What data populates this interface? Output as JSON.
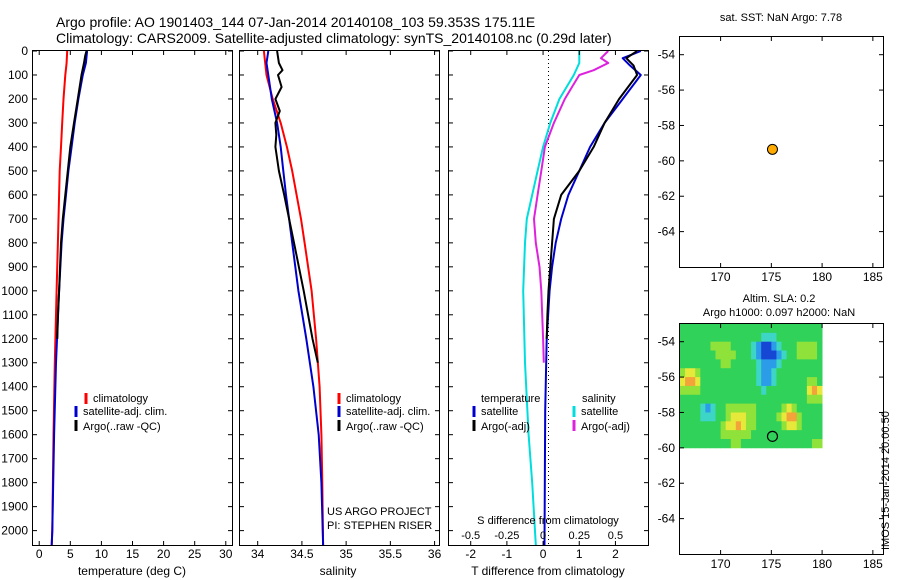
{
  "header": {
    "title_line1": "Argo profile: AO 1901403_144 07-Jan-2014 20140108_103 59.353S 175.11E",
    "title_line2": "Climatology: CARS2009. Satellite-adjusted climatology: synTS_20140108.nc (0.29d later)"
  },
  "depth_axis": {
    "ticks": [
      0,
      100,
      200,
      300,
      400,
      500,
      600,
      700,
      800,
      900,
      1000,
      1100,
      1200,
      1300,
      1400,
      1500,
      1600,
      1700,
      1800,
      1900,
      2000
    ],
    "ylim": [
      0,
      2060
    ]
  },
  "colors": {
    "climatology": "#ff0000",
    "satellite": "#0000cc",
    "argo": "#000000",
    "satellite_salinity": "#00dddd",
    "argo_salinity": "#dd22dd",
    "marker": "#ffaa00"
  },
  "chart_data": [
    {
      "type": "line",
      "id": "temperature",
      "xlabel": "temperature (deg C)",
      "xlim": [
        -1,
        31
      ],
      "xticks": [
        0,
        5,
        10,
        15,
        20,
        25,
        30
      ],
      "ylim": [
        0,
        2060
      ],
      "legend": {
        "climatology": "climatology",
        "satellite": "satellite-adj. clim.",
        "argo": "Argo(..raw -QC)"
      },
      "series": [
        {
          "key": "climatology",
          "depth": [
            0,
            50,
            100,
            200,
            300,
            400,
            500,
            600,
            800,
            1000,
            1300,
            1600,
            2000,
            2060
          ],
          "values": [
            4.5,
            4.4,
            4.2,
            3.9,
            3.7,
            3.5,
            3.3,
            3.2,
            3.0,
            2.8,
            2.5,
            2.3,
            2.1,
            2.0
          ]
        },
        {
          "key": "satellite",
          "depth": [
            0,
            50,
            100,
            200,
            300,
            400,
            500,
            600,
            700,
            800,
            1000,
            1300,
            1600,
            2000,
            2060
          ],
          "values": [
            7.7,
            7.5,
            7.0,
            6.3,
            5.7,
            5.2,
            4.7,
            4.3,
            3.9,
            3.6,
            3.2,
            2.7,
            2.4,
            2.1,
            2.0
          ]
        },
        {
          "key": "argo",
          "depth": [
            0,
            20,
            50,
            100,
            200,
            300,
            400,
            500,
            600,
            700,
            800,
            1000,
            1100,
            1200
          ],
          "values": [
            7.6,
            7.4,
            7.2,
            6.8,
            6.2,
            5.6,
            5.0,
            4.6,
            4.2,
            3.8,
            3.5,
            3.2,
            3.0,
            2.9
          ]
        }
      ]
    },
    {
      "type": "line",
      "id": "salinity",
      "xlabel": "salinity",
      "xlim": [
        33.8,
        36.05
      ],
      "xticks": [
        34,
        34.5,
        35,
        35.5,
        36
      ],
      "ylim": [
        0,
        2060
      ],
      "legend": {
        "climatology": "climatology",
        "satellite": "satellite-adj. clim.",
        "argo": "Argo(..raw -QC)"
      },
      "annotations": [
        "US ARGO PROJECT",
        "PI: STEPHEN RISER"
      ],
      "series": [
        {
          "key": "climatology",
          "depth": [
            0,
            100,
            200,
            300,
            400,
            500,
            600,
            700,
            800,
            900,
            1000,
            1200,
            1400,
            1600,
            1800,
            2060
          ],
          "values": [
            34.07,
            34.1,
            34.17,
            34.26,
            34.33,
            34.39,
            34.44,
            34.49,
            34.53,
            34.57,
            34.61,
            34.66,
            34.7,
            34.72,
            34.73,
            34.74
          ]
        },
        {
          "key": "satellite",
          "depth": [
            0,
            50,
            100,
            200,
            300,
            400,
            500,
            600,
            800,
            1000,
            1200,
            1400,
            1600,
            1800,
            2060
          ],
          "values": [
            34.12,
            34.1,
            34.12,
            34.16,
            34.22,
            34.26,
            34.29,
            34.32,
            34.39,
            34.46,
            34.55,
            34.63,
            34.69,
            34.72,
            34.74
          ]
        },
        {
          "key": "argo",
          "depth": [
            0,
            50,
            80,
            100,
            150,
            200,
            250,
            300,
            350,
            400,
            500,
            600,
            800,
            1000,
            1200,
            1300
          ],
          "values": [
            34.22,
            34.24,
            34.28,
            34.23,
            34.27,
            34.2,
            34.25,
            34.2,
            34.21,
            34.2,
            34.24,
            34.3,
            34.41,
            34.52,
            34.62,
            34.68
          ]
        }
      ]
    },
    {
      "type": "line",
      "id": "difference",
      "xlabel": "T difference from climatology",
      "x2label": "S difference from climatology",
      "xlim": [
        -2.6,
        2.9
      ],
      "xticks": [
        -2,
        -1,
        0,
        1,
        2
      ],
      "x2ticks_labels": [
        "-0.5",
        "-0.25",
        "0",
        "0.25",
        "0.5"
      ],
      "x2ticks_t": [
        -2,
        -1,
        0,
        1,
        2
      ],
      "ylim": [
        0,
        2060
      ],
      "legend": {
        "temperature_heading": "temperature",
        "salinity_heading": "salinity",
        "satellite": "satellite",
        "argo": "Argo(-adj)"
      },
      "series": [
        {
          "key": "t_satellite",
          "depth": [
            0,
            30,
            60,
            100,
            200,
            300,
            400,
            500,
            600,
            700,
            800,
            900,
            1000,
            1200,
            1500,
            2060
          ],
          "values": [
            2.7,
            2.2,
            2.4,
            2.7,
            2.2,
            1.7,
            1.3,
            1.0,
            0.7,
            0.5,
            0.35,
            0.25,
            0.18,
            0.1,
            0.06,
            0.04
          ]
        },
        {
          "key": "t_argo",
          "depth": [
            0,
            30,
            60,
            100,
            200,
            300,
            400,
            500,
            600,
            700,
            800,
            900,
            1000,
            1100,
            1200
          ],
          "values": [
            2.6,
            2.3,
            2.5,
            2.6,
            2.1,
            1.7,
            1.4,
            1.0,
            0.5,
            0.3,
            0.25,
            0.2,
            0.15,
            0.12,
            0.1
          ]
        },
        {
          "key": "s_satellite",
          "depth": [
            0,
            50,
            100,
            200,
            300,
            400,
            500,
            600,
            700,
            800,
            1000,
            1300,
            1600,
            1800,
            2060
          ],
          "values": [
            1.0,
            1.0,
            0.85,
            0.45,
            0.2,
            0.0,
            -0.15,
            -0.3,
            -0.45,
            -0.5,
            -0.55,
            -0.5,
            -0.4,
            -0.3,
            -0.2
          ]
        },
        {
          "key": "s_argo",
          "depth": [
            0,
            30,
            50,
            80,
            100,
            150,
            200,
            300,
            400,
            500,
            600,
            700,
            800,
            900,
            1000,
            1200,
            1300
          ],
          "values": [
            1.8,
            1.6,
            1.8,
            1.4,
            1.0,
            0.8,
            0.6,
            0.3,
            0.05,
            -0.05,
            -0.15,
            -0.25,
            -0.2,
            -0.1,
            -0.05,
            0.0,
            0.02
          ]
        }
      ]
    },
    {
      "type": "scatter",
      "id": "sst_map",
      "title": "sat. SST: NaN Argo: 7.78",
      "xlim": [
        166,
        186
      ],
      "xticks": [
        170,
        175,
        180,
        185
      ],
      "ylim": [
        -66,
        -53
      ],
      "yticks": [
        -54,
        -56,
        -58,
        -60,
        -62,
        -64
      ],
      "points": [
        {
          "x": 175.11,
          "y": -59.35
        }
      ]
    },
    {
      "type": "heatmap",
      "id": "sla_map",
      "title_line1": "Altim. SLA: 0.2",
      "title_line2": "Argo h1000: 0.097 h2000: NaN",
      "xlim": [
        166,
        186
      ],
      "xticks": [
        170,
        175,
        180,
        185
      ],
      "ylim": [
        -66,
        -53
      ],
      "yticks": [
        -54,
        -56,
        -58,
        -60,
        -62,
        -64
      ],
      "extent": {
        "x": [
          166,
          180
        ],
        "y": [
          -60,
          -53
        ]
      },
      "points": [
        {
          "x": 175.11,
          "y": -59.35
        }
      ]
    }
  ],
  "watermark": "IMOS 15-Jan-2014 20:00:50"
}
